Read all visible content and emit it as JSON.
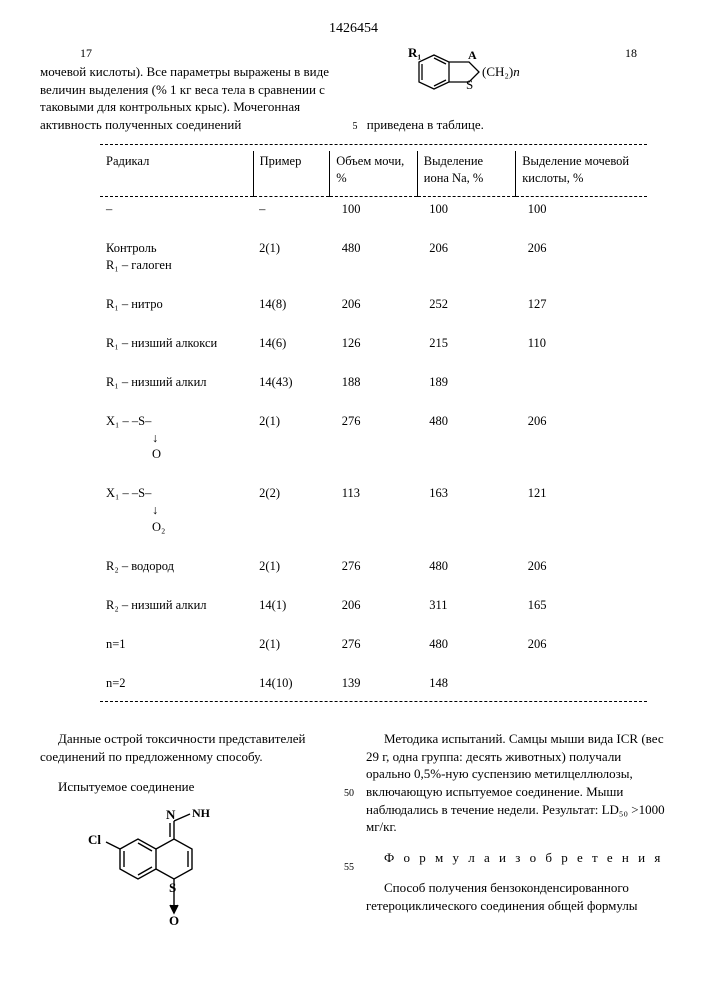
{
  "document_number": "1426454",
  "page_left": "17",
  "page_right": "18",
  "paragraph_left": "мочевой кислоты). Все параметры выражены в виде величин выделения (% 1 кг веса тела в сравнении с таковыми для контрольных крыс). Мочегонная активность полученных соединений",
  "paragraph_right_linenum": "5",
  "paragraph_right": "приведена в таблице.",
  "formula_top": {
    "R1": "R₁",
    "A": "A",
    "CH2n": "(CH₂)n",
    "S": "S"
  },
  "table": {
    "headers": {
      "radical": "Радикал",
      "example": "Пример",
      "urine_vol": "Объем мочи, %",
      "na_ion": "Выделение иона Na, %",
      "uric_acid": "Выделение мочевой кислоты, %"
    },
    "rows": [
      {
        "radical": "–",
        "example": "–",
        "urine": "100",
        "na": "100",
        "uric": "100"
      },
      {
        "radical": "Контроль\nR₁ – галоген",
        "example": "2(1)",
        "urine": "480",
        "na": "206",
        "uric": "206"
      },
      {
        "radical": "R₁ – нитро",
        "example": "14(8)",
        "urine": "206",
        "na": "252",
        "uric": "127"
      },
      {
        "radical": "R₁ – низший алкокси",
        "example": "14(6)",
        "urine": "126",
        "na": "215",
        "uric": "110"
      },
      {
        "radical": "R₁ – низший алкил",
        "example": "14(43)",
        "urine": "188",
        "na": "189",
        "uric": ""
      },
      {
        "radical": "X₁ – –S–\n       ↓\n       O",
        "example": "2(1)",
        "urine": "276",
        "na": "480",
        "uric": "206"
      },
      {
        "radical": "X₁ – –S–\n       ↓\n       O₂",
        "example": "2(2)",
        "urine": "113",
        "na": "163",
        "uric": "121"
      },
      {
        "radical": "R₂ – водород",
        "example": "2(1)",
        "urine": "276",
        "na": "480",
        "uric": "206"
      },
      {
        "radical": "R₂ – низший алкил",
        "example": "14(1)",
        "urine": "206",
        "na": "311",
        "uric": "165"
      },
      {
        "radical": "n=1",
        "example": "2(1)",
        "urine": "276",
        "na": "480",
        "uric": "206"
      },
      {
        "radical": "n=2",
        "example": "14(10)",
        "urine": "139",
        "na": "148",
        "uric": ""
      }
    ]
  },
  "bottom_left": {
    "p1": "Данные острой токсичности представителей соединений по предложенному способу.",
    "p2": "Испытуемое соединение"
  },
  "bottom_right": {
    "p1": "Методика испытаний. Самцы мыши вида ICR (вес 29 г, одна группа: десять животных) получали орально 0,5%-ную суспензию метилцеллюлозы, включающую испытуемое соединение. Мыши наблюдались в течение недели. Результат: LD₅₀ >1000 мг/кг.",
    "linenum50": "50",
    "linenum55": "55",
    "formula_title": "Ф о р м у л а   и з о б р е т е н и я",
    "p2": "Способ получения бензоконденсированного гетероциклического соединения общей формулы"
  }
}
